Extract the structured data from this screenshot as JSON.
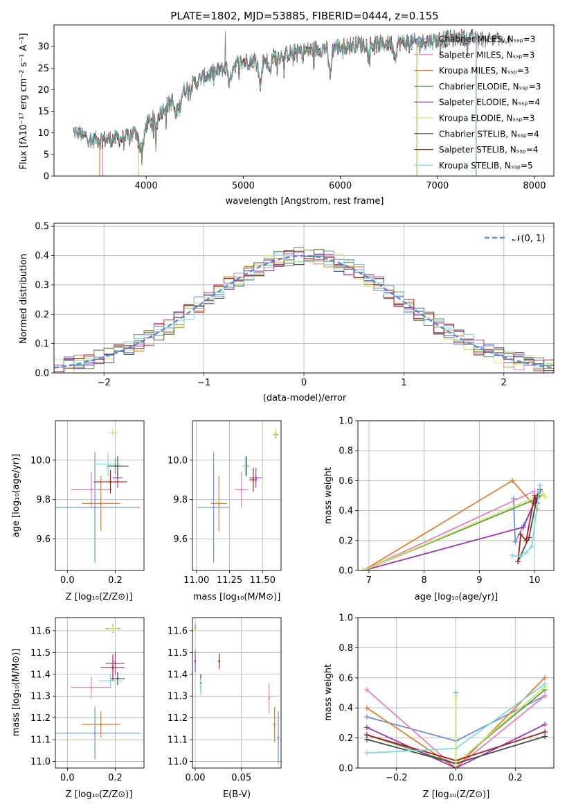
{
  "colors": [
    "#6c8fd8",
    "#e67fbe",
    "#e07e2c",
    "#5a9a4a",
    "#9a36b0",
    "#d2e86a",
    "#4a4a4a",
    "#a51d1d",
    "#7ed9de"
  ],
  "normal_color": "#5a8ed6",
  "chart_data": [
    {
      "id": "spectrum",
      "type": "line",
      "title": "PLATE=1802, MJD=53885, FIBERID=0444, z=0.155",
      "xlabel": "wavelength [Angstrom, rest frame]",
      "ylabel": "Flux [fλ10⁻¹⁷ erg cm⁻² s⁻¹ A⁻¹]",
      "xlim": [
        3050,
        8200
      ],
      "ylim": [
        0,
        35
      ],
      "xticks": [
        4000,
        5000,
        6000,
        7000,
        8000
      ],
      "yticks": [
        0,
        5,
        10,
        15,
        20,
        25,
        30
      ],
      "legend_position": "right",
      "series": [
        {
          "name": "Chabrier MILES, Nₛₛₚ=3"
        },
        {
          "name": "Salpeter MILES, Nₛₛₚ=3"
        },
        {
          "name": "Kroupa MILES, Nₛₛₚ=3"
        },
        {
          "name": "Chabrier ELODIE, Nₛₛₚ=3"
        },
        {
          "name": "Salpeter ELODIE, Nₛₛₚ=4"
        },
        {
          "name": "Kroupa ELODIE, Nₛₛₚ=3"
        },
        {
          "name": "Chabrier STELIB, Nₛₛₚ=4"
        },
        {
          "name": "Salpeter STELIB, Nₛₛₚ=4"
        },
        {
          "name": "Kroupa STELIB, Nₛₛₚ=5"
        }
      ],
      "continuum": [
        [
          3250,
          10.3
        ],
        [
          3450,
          8.5
        ],
        [
          3600,
          8.5
        ],
        [
          3800,
          9
        ],
        [
          3950,
          11
        ],
        [
          4050,
          13
        ],
        [
          4200,
          16
        ],
        [
          4400,
          20
        ],
        [
          4600,
          23
        ],
        [
          4800,
          25
        ],
        [
          5000,
          26.5
        ],
        [
          5200,
          27
        ],
        [
          5400,
          28
        ],
        [
          5600,
          29
        ],
        [
          5800,
          29.5
        ],
        [
          6000,
          30
        ],
        [
          6200,
          30.5
        ],
        [
          6400,
          30.5
        ],
        [
          6600,
          31
        ],
        [
          6800,
          31
        ],
        [
          7000,
          31.5
        ],
        [
          7200,
          32
        ],
        [
          7400,
          32
        ],
        [
          7600,
          32
        ],
        [
          7700,
          31
        ]
      ],
      "model_ranges": [
        {
          "start": 3550,
          "end": 7400
        },
        {
          "start": 3550,
          "end": 7400
        },
        {
          "start": 3520,
          "end": 7400
        },
        {
          "start": 3920,
          "end": 6790
        },
        {
          "start": 3920,
          "end": 6790
        },
        {
          "start": 3920,
          "end": 6790
        },
        {
          "start": 3250,
          "end": 7400
        },
        {
          "start": 3250,
          "end": 7400
        },
        {
          "start": 3250,
          "end": 7400
        }
      ]
    },
    {
      "id": "residuals",
      "type": "line",
      "xlabel": "(data-model)/error",
      "ylabel": "Normed distribution",
      "xlim": [
        -2.5,
        2.5
      ],
      "ylim": [
        0,
        0.51
      ],
      "xticks": [
        -2,
        -1,
        0,
        1,
        2
      ],
      "yticks": [
        0.0,
        0.1,
        0.2,
        0.3,
        0.4,
        0.5
      ],
      "grid": true,
      "legend_position": "top-right",
      "legend": "𝒩(0, 1)",
      "bin_width": 0.1
    },
    {
      "id": "age-vs-Z",
      "type": "scatter",
      "xlabel": "Z [log₁₀(Z/Z⊙)]",
      "ylabel": "age  [log₁₀(age/yr)]",
      "xlim": [
        -0.05,
        0.32
      ],
      "ylim": [
        9.44,
        10.2
      ],
      "xticks": [
        0.0,
        0.2
      ],
      "yticks": [
        9.6,
        9.8,
        10.0
      ],
      "grid": true,
      "points": [
        {
          "x": 0.115,
          "y": 9.76,
          "xerr": 0.19,
          "yerr": 0.28,
          "color": 0
        },
        {
          "x": 0.1,
          "y": 9.85,
          "xerr": 0.085,
          "yerr": 0.09,
          "color": 1
        },
        {
          "x": 0.14,
          "y": 9.78,
          "xerr": 0.08,
          "yerr": 0.14,
          "color": 2
        },
        {
          "x": 0.2,
          "y": 9.97,
          "xerr": 0.03,
          "yerr": 0.04,
          "color": 3
        },
        {
          "x": 0.21,
          "y": 9.91,
          "xerr": 0.02,
          "yerr": 0.05,
          "color": 4
        },
        {
          "x": 0.19,
          "y": 10.14,
          "xerr": 0.02,
          "yerr": 0.02,
          "color": 5
        },
        {
          "x": 0.21,
          "y": 9.97,
          "xerr": 0.045,
          "yerr": 0.05,
          "color": 6
        },
        {
          "x": 0.18,
          "y": 9.89,
          "xerr": 0.07,
          "yerr": 0.06,
          "color": 7
        },
        {
          "x": 0.17,
          "y": 9.98,
          "xerr": 0.05,
          "yerr": 0.06,
          "color": 8
        }
      ]
    },
    {
      "id": "age-vs-mass",
      "type": "scatter",
      "xlabel": "mass [log₁₀(M/M⊙)]",
      "xlim": [
        10.97,
        11.64
      ],
      "ylim": [
        9.44,
        10.2
      ],
      "xticks": [
        11.0,
        11.25,
        11.5
      ],
      "xticklabels": [
        "11.00",
        "11.25",
        "11.50"
      ],
      "yticks": [
        9.6,
        9.8,
        10.0
      ],
      "grid": true,
      "points": [
        {
          "x": 11.13,
          "y": 9.76,
          "xerr": 0.12,
          "yerr": 0.28,
          "color": 0
        },
        {
          "x": 11.34,
          "y": 9.85,
          "xerr": 0.05,
          "yerr": 0.09,
          "color": 1
        },
        {
          "x": 11.17,
          "y": 9.78,
          "xerr": 0.06,
          "yerr": 0.14,
          "color": 2
        },
        {
          "x": 11.6,
          "y": 10.13,
          "xerr": 0.02,
          "yerr": 0.02,
          "color": 3
        },
        {
          "x": 11.45,
          "y": 9.91,
          "xerr": 0.05,
          "yerr": 0.05,
          "color": 4
        },
        {
          "x": 11.6,
          "y": 10.14,
          "xerr": 0.015,
          "yerr": 0.02,
          "color": 5
        },
        {
          "x": 11.38,
          "y": 9.97,
          "xerr": 0.02,
          "yerr": 0.05,
          "color": 6
        },
        {
          "x": 11.43,
          "y": 9.9,
          "xerr": 0.03,
          "yerr": 0.06,
          "color": 7
        },
        {
          "x": 11.37,
          "y": 9.97,
          "xerr": 0.025,
          "yerr": 0.05,
          "color": 8
        }
      ]
    },
    {
      "id": "mass-weight-vs-age",
      "type": "line",
      "xlabel": "age  [log₁₀(age/yr)]",
      "ylabel": "mass weight",
      "xlim": [
        6.8,
        10.35
      ],
      "ylim": [
        0,
        1.0
      ],
      "xticks": [
        7,
        8,
        9,
        10
      ],
      "yticks": [
        0.0,
        0.2,
        0.4,
        0.6,
        0.8,
        1.0
      ],
      "grid": true,
      "series": [
        {
          "color": 0,
          "x": [
            9.62,
            9.65,
            9.8,
            10.1
          ],
          "y": [
            0.48,
            0.19,
            0.3,
            0.53
          ]
        },
        {
          "color": 1,
          "x": [
            6.9,
            10.0
          ],
          "y": [
            0.0,
            0.53
          ]
        },
        {
          "color": 2,
          "x": [
            6.9,
            9.6,
            10.05
          ],
          "y": [
            0.0,
            0.6,
            0.41
          ]
        },
        {
          "color": 3,
          "x": [
            6.9,
            10.05,
            10.15
          ],
          "y": [
            0.0,
            0.48,
            0.51
          ]
        },
        {
          "color": 4,
          "x": [
            6.9,
            9.8,
            10.05
          ],
          "y": [
            0.0,
            0.29,
            0.5
          ]
        },
        {
          "color": 5,
          "x": [
            6.9,
            10.15,
            10.2
          ],
          "y": [
            0.0,
            0.51,
            0.49
          ]
        },
        {
          "color": 6,
          "x": [
            9.7,
            9.9,
            10.05,
            10.1
          ],
          "y": [
            0.06,
            0.22,
            0.5,
            0.54
          ]
        },
        {
          "color": 7,
          "x": [
            9.7,
            9.75,
            9.85,
            10.0,
            10.05
          ],
          "y": [
            0.06,
            0.24,
            0.2,
            0.5,
            0.45
          ]
        },
        {
          "color": 8,
          "x": [
            9.6,
            9.75,
            9.85,
            9.95,
            10.1
          ],
          "y": [
            0.1,
            0.09,
            0.12,
            0.16,
            0.57
          ]
        }
      ]
    },
    {
      "id": "mass-vs-Z",
      "type": "scatter",
      "xlabel": "Z [log₁₀(Z/Z⊙)]",
      "ylabel": "mass [log₁₀(M/M⊙)]",
      "xlim": [
        -0.05,
        0.32
      ],
      "ylim": [
        10.97,
        11.66
      ],
      "xticks": [
        0.0,
        0.2
      ],
      "yticks": [
        11.0,
        11.1,
        11.2,
        11.3,
        11.4,
        11.5,
        11.6
      ],
      "grid": true,
      "points": [
        {
          "x": 0.115,
          "y": 11.13,
          "xerr": 0.19,
          "yerr": 0.12,
          "color": 0
        },
        {
          "x": 0.1,
          "y": 11.34,
          "xerr": 0.085,
          "yerr": 0.05,
          "color": 1
        },
        {
          "x": 0.14,
          "y": 11.17,
          "xerr": 0.08,
          "yerr": 0.06,
          "color": 2
        },
        {
          "x": 0.19,
          "y": 11.61,
          "xerr": 0.03,
          "yerr": 0.02,
          "color": 3
        },
        {
          "x": 0.2,
          "y": 11.45,
          "xerr": 0.04,
          "yerr": 0.05,
          "color": 4
        },
        {
          "x": 0.19,
          "y": 11.61,
          "xerr": 0.02,
          "yerr": 0.015,
          "color": 5
        },
        {
          "x": 0.21,
          "y": 11.38,
          "xerr": 0.03,
          "yerr": 0.03,
          "color": 6
        },
        {
          "x": 0.19,
          "y": 11.43,
          "xerr": 0.05,
          "yerr": 0.06,
          "color": 7
        },
        {
          "x": 0.18,
          "y": 11.37,
          "xerr": 0.05,
          "yerr": 0.03,
          "color": 8
        }
      ]
    },
    {
      "id": "mass-vs-EBV",
      "type": "scatter",
      "xlabel": "E(B-V)",
      "xlim": [
        -0.003,
        0.093
      ],
      "ylim": [
        10.97,
        11.66
      ],
      "xticks": [
        0.0,
        0.05
      ],
      "xticklabels": [
        "0.00",
        "0.05"
      ],
      "yticks": [
        11.0,
        11.1,
        11.2,
        11.3,
        11.4,
        11.5,
        11.6
      ],
      "grid": true,
      "points": [
        {
          "x": 0.09,
          "y": 11.11,
          "xerr": 0,
          "yerr": 0.12,
          "color": 0
        },
        {
          "x": 0.08,
          "y": 11.29,
          "xerr": 0,
          "yerr": 0.07,
          "color": 1
        },
        {
          "x": 0.086,
          "y": 11.17,
          "xerr": 0,
          "yerr": 0.08,
          "color": 2
        },
        {
          "x": 0.0,
          "y": 11.61,
          "xerr": 0,
          "yerr": 0.02,
          "color": 3
        },
        {
          "x": 0.0,
          "y": 11.46,
          "xerr": 0,
          "yerr": 0.05,
          "color": 4
        },
        {
          "x": 0.0,
          "y": 11.6,
          "xerr": 0,
          "yerr": 0.015,
          "color": 5
        },
        {
          "x": 0.006,
          "y": 11.36,
          "xerr": 0,
          "yerr": 0.04,
          "color": 6
        },
        {
          "x": 0.026,
          "y": 11.46,
          "xerr": 0,
          "yerr": 0.035,
          "color": 7
        },
        {
          "x": 0.006,
          "y": 11.34,
          "xerr": 0,
          "yerr": 0.04,
          "color": 8
        }
      ]
    },
    {
      "id": "mass-weight-vs-Z",
      "type": "line",
      "xlabel": "Z [log₁₀(Z/Z⊙)]",
      "ylabel": "mass weight",
      "xlim": [
        -0.33,
        0.33
      ],
      "ylim": [
        0,
        1.0
      ],
      "xticks": [
        -0.2,
        0.0,
        0.2
      ],
      "yticks": [
        0.0,
        0.2,
        0.4,
        0.6,
        0.8,
        1.0
      ],
      "grid": true,
      "series": [
        {
          "color": 0,
          "x": [
            -0.3,
            0.0,
            0.3
          ],
          "y": [
            0.34,
            0.18,
            0.48
          ]
        },
        {
          "color": 1,
          "x": [
            -0.3,
            0.0,
            0.3
          ],
          "y": [
            0.52,
            0.0,
            0.48
          ]
        },
        {
          "color": 2,
          "x": [
            -0.3,
            0.0,
            0.3
          ],
          "y": [
            0.4,
            0.0,
            0.6
          ]
        },
        {
          "color": 3,
          "x": [
            -0.3,
            0.0,
            0.3
          ],
          "y": [
            0.22,
            0.03,
            0.52
          ]
        },
        {
          "color": 4,
          "x": [
            -0.3,
            0.0,
            0.3
          ],
          "y": [
            0.27,
            0.0,
            0.29
          ]
        },
        {
          "color": 5,
          "x": [
            0.0,
            0.3
          ],
          "y": [
            0.03,
            0.54
          ]
        },
        {
          "color": 6,
          "x": [
            -0.3,
            0.0,
            0.3
          ],
          "y": [
            0.19,
            0.03,
            0.21
          ]
        },
        {
          "color": 7,
          "x": [
            -0.3,
            0.0,
            0.3
          ],
          "y": [
            0.22,
            0.05,
            0.24
          ]
        },
        {
          "color": 8,
          "x": [
            -0.3,
            0.0,
            0.3
          ],
          "y": [
            0.1,
            0.13,
            0.56
          ]
        }
      ],
      "markers_at_zero": [
        {
          "color": 0,
          "y": 0.5
        },
        {
          "color": 5,
          "y": 0.48
        }
      ]
    }
  ]
}
